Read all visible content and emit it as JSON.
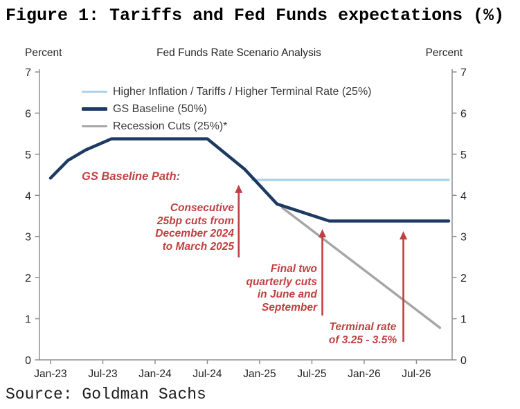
{
  "figure_title": "Figure 1: Tariffs and Fed Funds expectations (%)",
  "source": "Source: Goldman Sachs",
  "chart": {
    "title": "Fed Funds Rate Scenario Analysis",
    "percent_left": "Percent",
    "percent_right": "Percent"
  },
  "chart_data": {
    "type": "line",
    "title": "Fed Funds Rate Scenario Analysis",
    "y_axis": {
      "unit": "Percent",
      "min": 0,
      "max": 7,
      "ticks": [
        0,
        1,
        2,
        3,
        4,
        5,
        6,
        7
      ],
      "shown_both_sides": true
    },
    "x_axis": {
      "tick_labels": [
        "Jan-23",
        "Jul-23",
        "Jan-24",
        "Jul-24",
        "Jan-25",
        "Jul-25",
        "Jan-26",
        "Jul-26"
      ],
      "months_between_ticks": 6,
      "x_unit": "months since Jan-2023"
    },
    "grid": false,
    "legend_position": "inside-top-left",
    "series": [
      {
        "name": "Higher Inflation / Tariffs / Higher Terminal Rate (25%)",
        "color": "#aed2ec",
        "line_width": 3.5,
        "points": [
          [
            23.2,
            4.375
          ],
          [
            45.7,
            4.375
          ]
        ]
      },
      {
        "name": "GS Baseline (50%)",
        "color": "#1d3a63",
        "line_width": 4.5,
        "points": [
          [
            0,
            4.42
          ],
          [
            2,
            4.85
          ],
          [
            4,
            5.1
          ],
          [
            7,
            5.375
          ],
          [
            18,
            5.375
          ],
          [
            22.3,
            4.63
          ],
          [
            26,
            3.79
          ],
          [
            32,
            3.375
          ],
          [
            45.7,
            3.375
          ]
        ]
      },
      {
        "name": "Recession Cuts (25%)*",
        "color": "#a6a6a6",
        "line_width": 3.5,
        "points": [
          [
            26.6,
            3.7
          ],
          [
            44.7,
            0.78
          ]
        ]
      }
    ]
  },
  "annotations": [
    {
      "text": "GS Baseline Path:"
    },
    {
      "text": "Consecutive\n25bp cuts from\nDecember 2024\nto March 2025",
      "arrow": {
        "x_month": 21.6,
        "value_from": 2.49,
        "value_to": 4.26
      }
    },
    {
      "text": "Final two\nquarterly cuts\nin June and\nSeptember",
      "arrow": {
        "x_month": 31.2,
        "value_from": 1.08,
        "value_to": 3.18
      }
    },
    {
      "text": "Terminal rate\nof 3.25 - 3.5%",
      "arrow": {
        "x_month": 40.5,
        "value_from": 0.44,
        "value_to": 3.13
      }
    }
  ],
  "colors": {
    "annotation_red": "#bf4040",
    "axis": "#8f8f8f",
    "tick_text": "#262626"
  }
}
